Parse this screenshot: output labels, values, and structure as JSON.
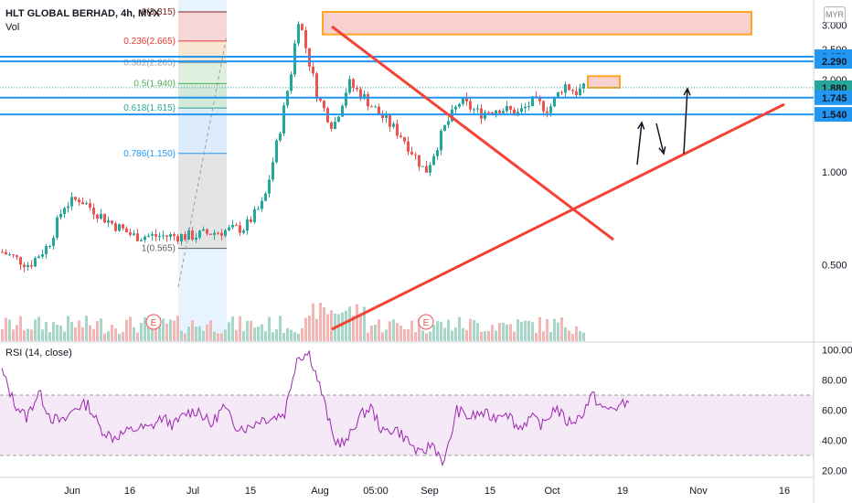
{
  "header": {
    "symbol_line": "HLT GLOBAL BERHAD, 4h, MYX",
    "volume_label": "Vol",
    "currency_button": "MYR",
    "rsi_label": "RSI (14, close)"
  },
  "chart_data": [
    {
      "type": "candlestick",
      "title": "HLT GLOBAL BERHAD, 4h, MYX",
      "y_axis_scale": "log",
      "y_ticks": [
        "3.000",
        "2.500",
        "2.000",
        "1.000",
        "0.500"
      ],
      "x_ticks": [
        "Jun",
        "16",
        "Jul",
        "15",
        "Aug",
        "05:00",
        "Sep",
        "15",
        "Oct",
        "19",
        "Nov",
        "16"
      ],
      "price_labels": [
        {
          "value": "2.370",
          "color": "#2196f3"
        },
        {
          "value": "2.290",
          "color": "#2196f3"
        },
        {
          "value": "1.880",
          "color": "#26a69a"
        },
        {
          "value": "1.745",
          "color": "#2196f3"
        },
        {
          "value": "1.540",
          "color": "#2196f3"
        }
      ],
      "horizontal_levels": [
        2.37,
        2.29,
        1.745,
        1.54
      ],
      "fibonacci": [
        {
          "ratio": "0",
          "price": 3.315,
          "label": "0(3.315)"
        },
        {
          "ratio": "0.236",
          "price": 2.665,
          "label": "0.236(2.665)"
        },
        {
          "ratio": "0.382",
          "price": 2.265,
          "label": "0.382(2.265)"
        },
        {
          "ratio": "0.5",
          "price": 1.94,
          "label": "0.5(1.940)"
        },
        {
          "ratio": "0.618",
          "price": 1.615,
          "label": "0.618(1.615)"
        },
        {
          "ratio": "0.786",
          "price": 1.15,
          "label": "0.786(1.150)"
        },
        {
          "ratio": "1",
          "price": 0.565,
          "label": "1(0.565)"
        }
      ],
      "annotations": [
        "earnings-marker-E",
        "earnings-marker-E",
        "resistance-zone",
        "small-resistance-box",
        "descending-trendline",
        "ascending-trendline",
        "forecast-arrows"
      ],
      "earnings_marker_text": "E",
      "price_path": [
        {
          "t": "May 20",
          "close": 0.55
        },
        {
          "t": "May 27",
          "close": 0.5
        },
        {
          "t": "Jun 1",
          "close": 0.58
        },
        {
          "t": "Jun 5",
          "close": 0.78
        },
        {
          "t": "Jun 9",
          "close": 0.82
        },
        {
          "t": "Jun 16",
          "close": 0.7
        },
        {
          "t": "Jun 23",
          "close": 0.62
        },
        {
          "t": "Jun 30",
          "close": 0.62
        },
        {
          "t": "Jul 8",
          "close": 0.62
        },
        {
          "t": "Jul 15",
          "close": 0.64
        },
        {
          "t": "Jul 22",
          "close": 0.66
        },
        {
          "t": "Jul 27",
          "close": 0.8
        },
        {
          "t": "Jul 31",
          "close": 1.35
        },
        {
          "t": "Aug 3",
          "close": 2.1
        },
        {
          "t": "Aug 5",
          "close": 3.2
        },
        {
          "t": "Aug 7",
          "close": 2.5
        },
        {
          "t": "Aug 10",
          "close": 1.75
        },
        {
          "t": "Aug 14",
          "close": 1.4
        },
        {
          "t": "Aug 18",
          "close": 1.95
        },
        {
          "t": "Aug 22",
          "close": 1.75
        },
        {
          "t": "Aug 27",
          "close": 1.5
        },
        {
          "t": "Sep 1",
          "close": 1.3
        },
        {
          "t": "Sep 7",
          "close": 1.0
        },
        {
          "t": "Sep 12",
          "close": 1.4
        },
        {
          "t": "Sep 16",
          "close": 1.7
        },
        {
          "t": "Sep 21",
          "close": 1.55
        },
        {
          "t": "Sep 26",
          "close": 1.62
        },
        {
          "t": "Oct 1",
          "close": 1.55
        },
        {
          "t": "Oct 5",
          "close": 1.7
        },
        {
          "t": "Oct 9",
          "close": 1.6
        },
        {
          "t": "Oct 13",
          "close": 1.93
        },
        {
          "t": "Oct 16",
          "close": 1.82
        },
        {
          "t": "Oct 19",
          "close": 1.88
        }
      ]
    },
    {
      "type": "line",
      "title": "RSI (14, close)",
      "y_ticks": [
        "100.00",
        "80.00",
        "60.00",
        "40.00",
        "20.00"
      ],
      "ylim": [
        20,
        100
      ],
      "bands": [
        30,
        70
      ],
      "values": [
        86,
        65,
        55,
        72,
        55,
        52,
        62,
        64,
        48,
        42,
        45,
        48,
        48,
        55,
        50,
        58,
        60,
        50,
        62,
        50,
        48,
        54,
        55,
        58,
        95,
        98,
        72,
        40,
        38,
        55,
        62,
        45,
        48,
        40,
        30,
        38,
        25,
        60,
        55,
        58,
        55,
        60,
        48,
        55,
        50,
        62,
        52,
        55,
        70,
        60,
        62,
        65
      ]
    }
  ]
}
